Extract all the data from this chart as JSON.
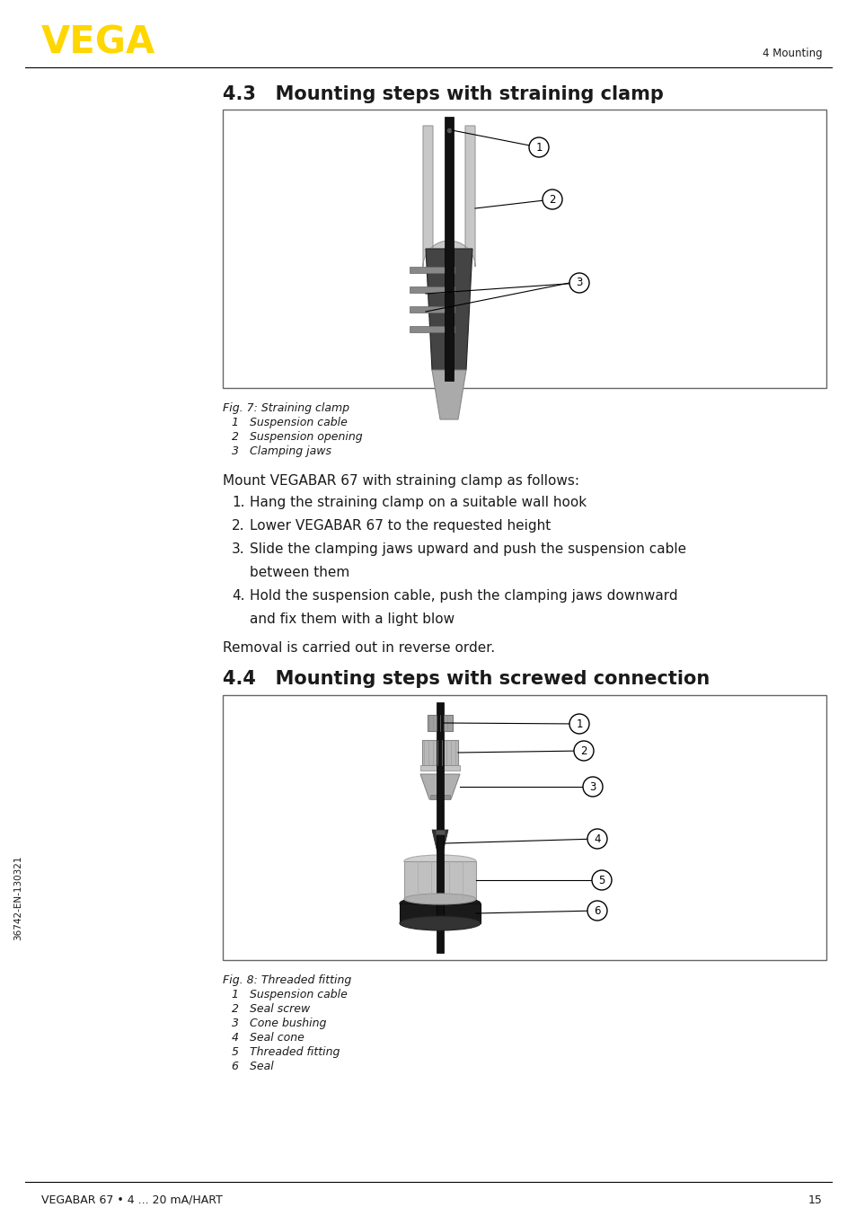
{
  "page_bg": "#ffffff",
  "vega_logo_text": "VEGA",
  "vega_logo_color": "#FFD700",
  "header_right_text": "4 Mounting",
  "footer_left_text": "VEGABAR 67 • 4 ... 20 mA/HART",
  "footer_right_text": "15",
  "sidebar_text": "36742-EN-130321",
  "section1_title": "4.3   Mounting steps with straining clamp",
  "section2_title": "4.4   Mounting steps with screwed connection",
  "fig1_caption": "Fig. 7: Straining clamp",
  "fig1_items": [
    "1   Suspension cable",
    "2   Suspension opening",
    "3   Clamping jaws"
  ],
  "fig2_caption": "Fig. 8: Threaded fitting",
  "fig2_items": [
    "1   Suspension cable",
    "2   Seal screw",
    "3   Cone bushing",
    "4   Seal cone",
    "5   Threaded fitting",
    "6   Seal"
  ],
  "mount_intro": "Mount VEGABAR 67 with straining clamp as follows:",
  "mount_steps_line1": [
    "Hang the straining clamp on a suitable wall hook",
    "Lower VEGABAR 67 to the requested height",
    "Slide the clamping jaws upward and push the suspension cable",
    "Hold the suspension cable, push the clamping jaws downward"
  ],
  "mount_steps_line2": [
    "",
    "",
    "between them",
    "and fix them with a light blow"
  ],
  "removal_text": "Removal is carried out in reverse order.",
  "text_color": "#1a1a1a",
  "line_color": "#000000",
  "border_color": "#555555"
}
